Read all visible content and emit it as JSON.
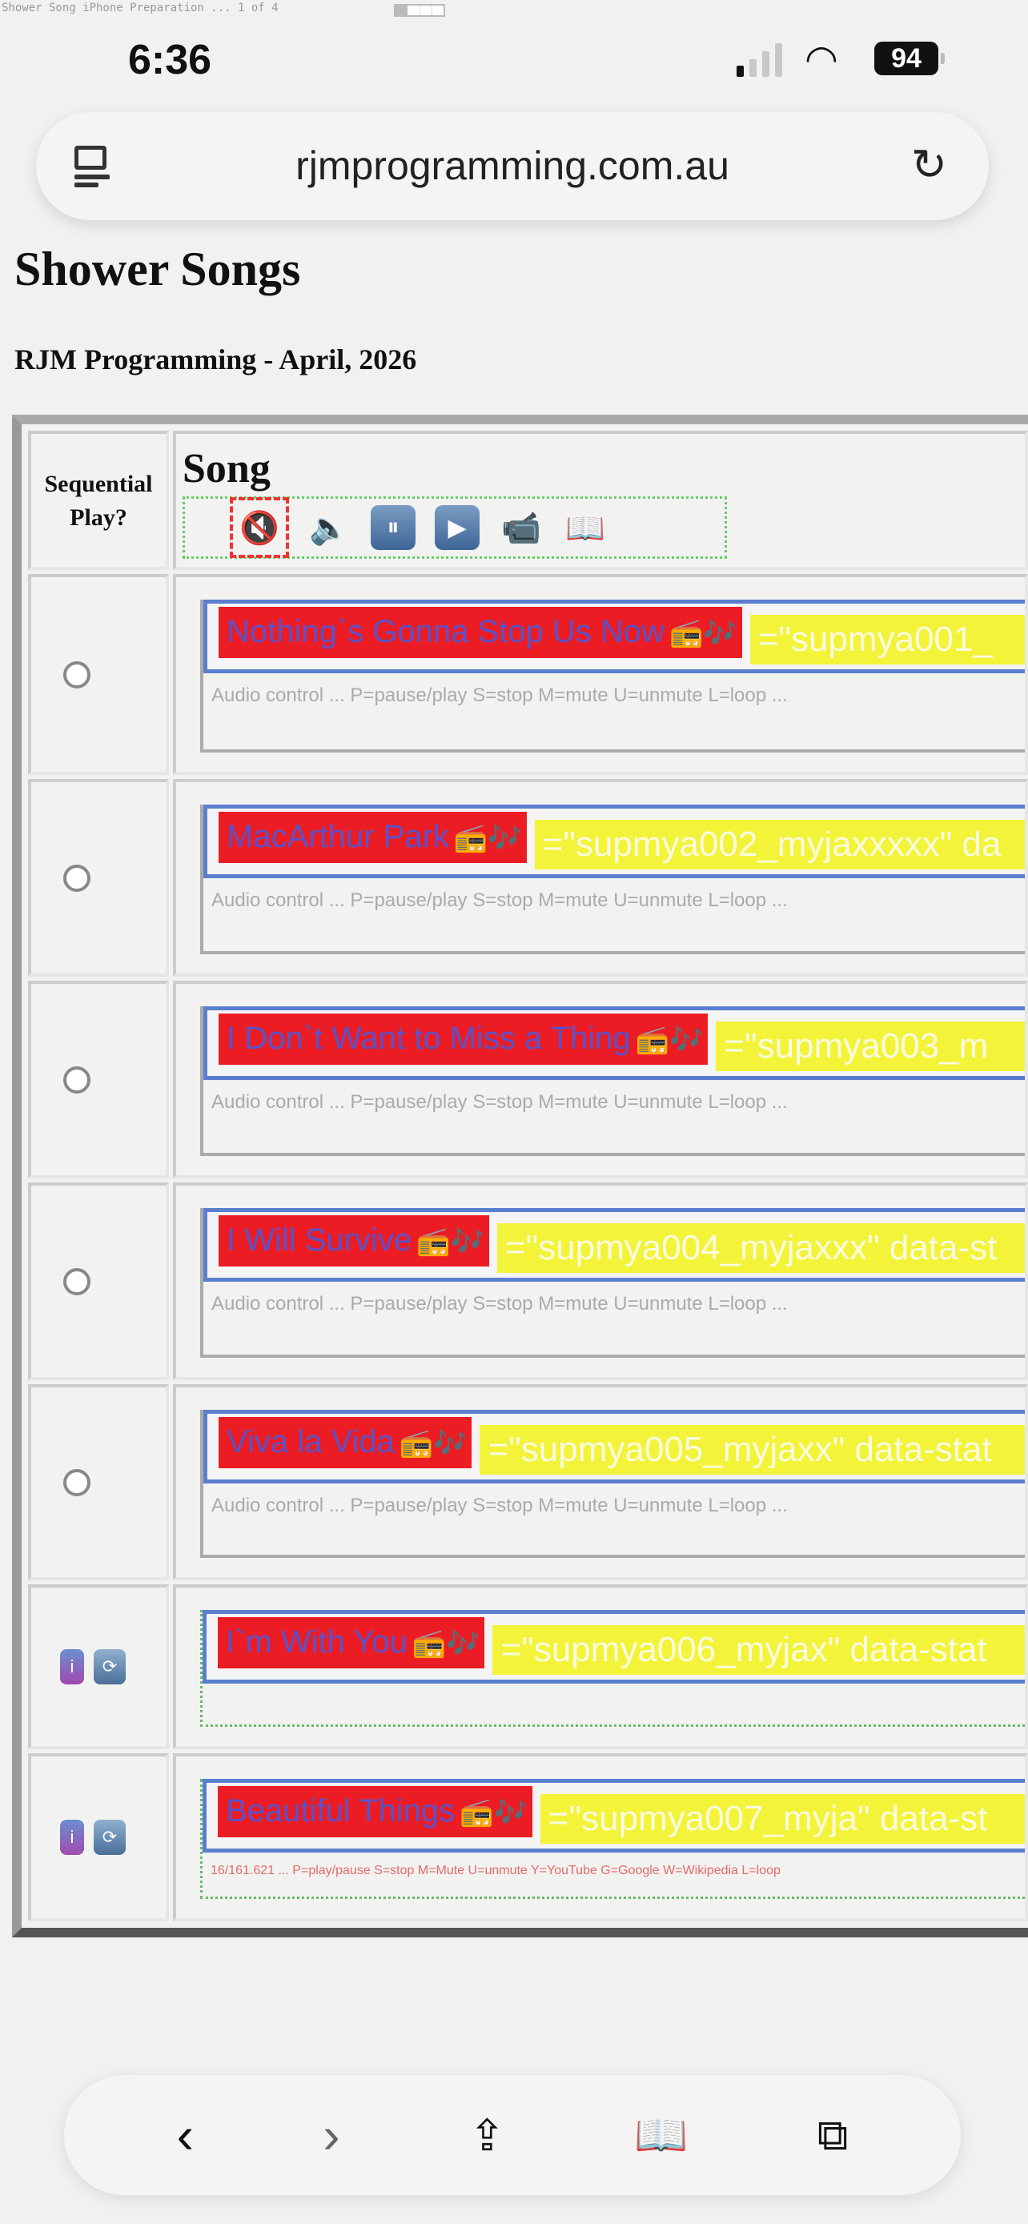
{
  "caption": {
    "text": "Shower Song iPhone Preparation ... 1 of 4"
  },
  "status_bar": {
    "time": "6:36",
    "battery": "94",
    "signal_icon": "cellular-signal-icon",
    "wifi_icon": "wifi-icon"
  },
  "browser": {
    "url": "rjmprogramming.com.au",
    "tabs_icon": "tab-overview-icon",
    "reload_icon": "reload-icon"
  },
  "page": {
    "title": "Shower Songs",
    "subtitle": "RJM Programming - April, 2026"
  },
  "table": {
    "headers": {
      "col1": "Sequential Play?",
      "col2": "Song"
    },
    "controls": [
      "mute-icon",
      "speaker-icon",
      "pause-icon",
      "play-icon",
      "video-camera-icon",
      "book-icon"
    ],
    "controls_glyphs": [
      "🔇",
      "🔈",
      "⏸",
      "▶",
      "📹",
      "📖"
    ],
    "rows": [
      {
        "title": "Nothing`s Gonna Stop Us Now",
        "yellow": "=\"supmya001_",
        "hint": "Audio control ... P=pause/play S=stop M=mute U=unmute L=loop ...",
        "left": "radio"
      },
      {
        "title": "MacArthur Park",
        "yellow": "=\"supmya002_myjaxxxxx\"  da",
        "hint": "Audio control ... P=pause/play S=stop M=mute U=unmute L=loop ...",
        "left": "radio"
      },
      {
        "title": "I Don`t Want to Miss a Thing",
        "yellow": "=\"supmya003_m",
        "hint": "Audio control ... P=pause/play S=stop M=mute U=unmute L=loop ...",
        "left": "radio"
      },
      {
        "title": "I Will Survive",
        "yellow": "=\"supmya004_myjaxxx\"  data-st",
        "hint": "Audio control ... P=pause/play S=stop M=mute U=unmute L=loop ...",
        "left": "radio"
      },
      {
        "title": "Viva la Vida",
        "yellow": "=\"supmya005_myjaxx\"  data-stat",
        "hint": "Audio control ... P=pause/play S=stop M=mute U=unmute L=loop ...",
        "left": "radio"
      },
      {
        "title": "I`m With You",
        "yellow": "=\"supmya006_myjax\"  data-stat",
        "hint": "",
        "left": "buttons"
      },
      {
        "title": "Beautiful Things",
        "yellow": "=\"supmya007_myja\"  data-st",
        "hint": "16/161.621 ... P=play/pause S=stop M=Mute U=unmute Y=YouTube G=Google W=Wikipedia L=loop",
        "left": "buttons"
      }
    ],
    "row_icons": {
      "radio": "radio-icon",
      "music": "music-notes-icon"
    },
    "colors": {
      "title_bg": "#ec1c24",
      "title_text": "#5b52c8",
      "yellow_bg": "#f3f33a",
      "box_border": "#5a7fd0"
    }
  },
  "bottom_toolbar": {
    "back": "‹",
    "forward": "›",
    "share": "share-icon",
    "bookmarks": "bookmarks-icon",
    "tabs": "tabs-icon"
  }
}
